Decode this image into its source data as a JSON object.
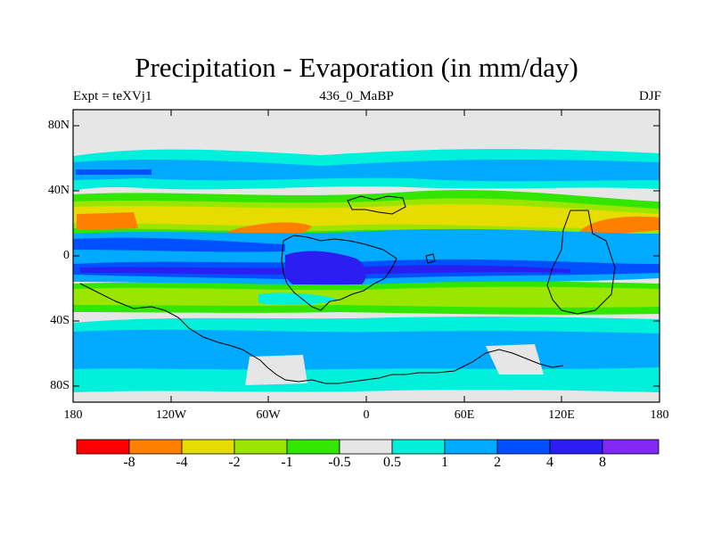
{
  "figure": {
    "title": "Precipitation - Evaporation (in mm/day)",
    "experiment_label": "Expt = teXVj1",
    "age_label": "436_0_MaBP",
    "season_label": "DJF"
  },
  "map": {
    "projection": "cylindrical equidistant",
    "lat_ticks": [
      "80N",
      "40N",
      "0",
      "40S",
      "80S"
    ],
    "lon_ticks": [
      "180",
      "120W",
      "60W",
      "0",
      "60E",
      "120E",
      "180"
    ],
    "lon_range": [
      -180,
      180
    ],
    "lat_range": [
      -90,
      90
    ]
  },
  "colorbar": {
    "levels": [
      "-8",
      "-4",
      "-2",
      "-1",
      "-0.5",
      "0.5",
      "1",
      "2",
      "4",
      "8"
    ],
    "colors": [
      "#ff0000",
      "#ff8000",
      "#e6dc00",
      "#9be600",
      "#32e600",
      "#e6e6e6",
      "#00f0dc",
      "#00aaff",
      "#0050ff",
      "#2a1ef0",
      "#8228f5"
    ]
  },
  "chart_data": {
    "type": "heatmap",
    "title": "Precipitation - Evaporation (in mm/day)",
    "variable": "P - E",
    "units": "mm/day",
    "xlabel": "",
    "ylabel": "",
    "x_range": [
      -180,
      180
    ],
    "y_range": [
      -90,
      90
    ],
    "bins": [
      {
        "range": "< -8",
        "color": "#ff0000"
      },
      {
        "range": "-8 to -4",
        "color": "#ff8000"
      },
      {
        "range": "-4 to -2",
        "color": "#e6dc00"
      },
      {
        "range": "-2 to -1",
        "color": "#9be600"
      },
      {
        "range": "-1 to -0.5",
        "color": "#32e600"
      },
      {
        "range": "-0.5 to 0.5",
        "color": "#e6e6e6"
      },
      {
        "range": "0.5 to 1",
        "color": "#00f0dc"
      },
      {
        "range": "1 to 2",
        "color": "#00aaff"
      },
      {
        "range": "2 to 4",
        "color": "#0050ff"
      },
      {
        "range": "4 to 8",
        "color": "#2a1ef0"
      },
      {
        "range": "> 8",
        "color": "#8228f5"
      }
    ],
    "zonal_pattern_approx": [
      {
        "lat_band": "90N-75N",
        "value_range": "-0.5 to 0.5"
      },
      {
        "lat_band": "70N-45N",
        "value_range": "0.5 to 4"
      },
      {
        "lat_band": "40N-10N",
        "value_range": "-4 to -0.5"
      },
      {
        "lat_band": "10N-5S",
        "value_range": "1 to 8"
      },
      {
        "lat_band": "5S-35S",
        "value_range": "-2 to -0.5"
      },
      {
        "lat_band": "35S-55S",
        "value_range": "0.5 to 4"
      },
      {
        "lat_band": "60S-90S",
        "value_range": "-0.5 to 1"
      }
    ]
  }
}
